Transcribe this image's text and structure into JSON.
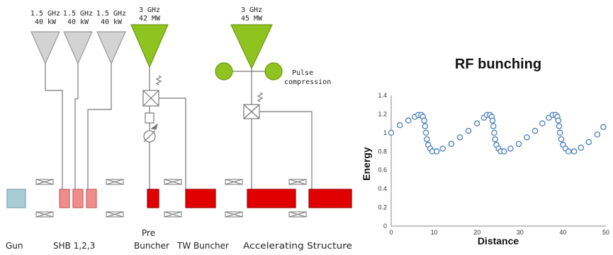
{
  "diagram": {
    "sources": [
      {
        "freq": "1.5 GHz",
        "power": "40 kW"
      },
      {
        "freq": "1.5 GHz",
        "power": "40 kW"
      },
      {
        "freq": "1.5 GHz",
        "power": "40 kW"
      },
      {
        "freq": "3 GHz",
        "power": "42 MW"
      },
      {
        "freq": "3 GHz",
        "power": "45 MW"
      }
    ],
    "pulse_compression": [
      "Pulse",
      "compression"
    ],
    "bottom_labels": {
      "gun": "Gun",
      "shb": "SHB 1,2,3",
      "pre_buncher": [
        "Pre",
        "Buncher"
      ],
      "tw_buncher": "TW Buncher",
      "accel": "Accelerating Structure"
    },
    "colors": {
      "shb_triangle": "#d3d3d3",
      "klystron_green": "#8fc31f",
      "accel_red": "#e00000",
      "shb_pink": "#f08c8c",
      "gun_teal": "#a7ccd3"
    }
  },
  "chart_data": {
    "type": "scatter",
    "title": "RF bunching",
    "xlabel": "Distance",
    "ylabel": "Energy",
    "xlim": [
      0,
      50
    ],
    "ylim": [
      0,
      1.4
    ],
    "xticks": [
      "0",
      "10",
      "20",
      "30",
      "40",
      "50"
    ],
    "yticks": [
      "0",
      "0.2",
      "0.4",
      "0.6",
      "0.8",
      "1",
      "1.2",
      "1.4"
    ],
    "marker_color": "#4a7ebb",
    "grid": false,
    "x": [
      0.0,
      2.0,
      4.0,
      5.5,
      6.3,
      7.0,
      7.4,
      7.7,
      7.9,
      8.1,
      8.3,
      8.6,
      9.1,
      9.6,
      10.6,
      12.0,
      14.0,
      16.0,
      18.0,
      20.0,
      21.6,
      22.3,
      23.0,
      23.4,
      23.6,
      23.8,
      24.0,
      24.2,
      24.5,
      25.0,
      25.5,
      26.3,
      27.8,
      29.7,
      31.6,
      33.5,
      35.2,
      36.7,
      37.6,
      38.3,
      38.7,
      38.9,
      39.1,
      39.3,
      39.6,
      40.0,
      40.6,
      41.3,
      42.6,
      44.2,
      46.0,
      48.0,
      49.4
    ],
    "y": [
      1.0,
      1.08,
      1.13,
      1.17,
      1.19,
      1.19,
      1.17,
      1.13,
      1.07,
      1.0,
      0.93,
      0.87,
      0.83,
      0.8,
      0.8,
      0.83,
      0.88,
      0.95,
      1.02,
      1.1,
      1.16,
      1.19,
      1.19,
      1.17,
      1.13,
      1.07,
      1.0,
      0.93,
      0.87,
      0.83,
      0.8,
      0.8,
      0.83,
      0.88,
      0.95,
      1.02,
      1.1,
      1.16,
      1.19,
      1.19,
      1.17,
      1.13,
      1.07,
      1.0,
      0.93,
      0.87,
      0.83,
      0.8,
      0.8,
      0.84,
      0.9,
      0.98,
      1.06
    ]
  }
}
